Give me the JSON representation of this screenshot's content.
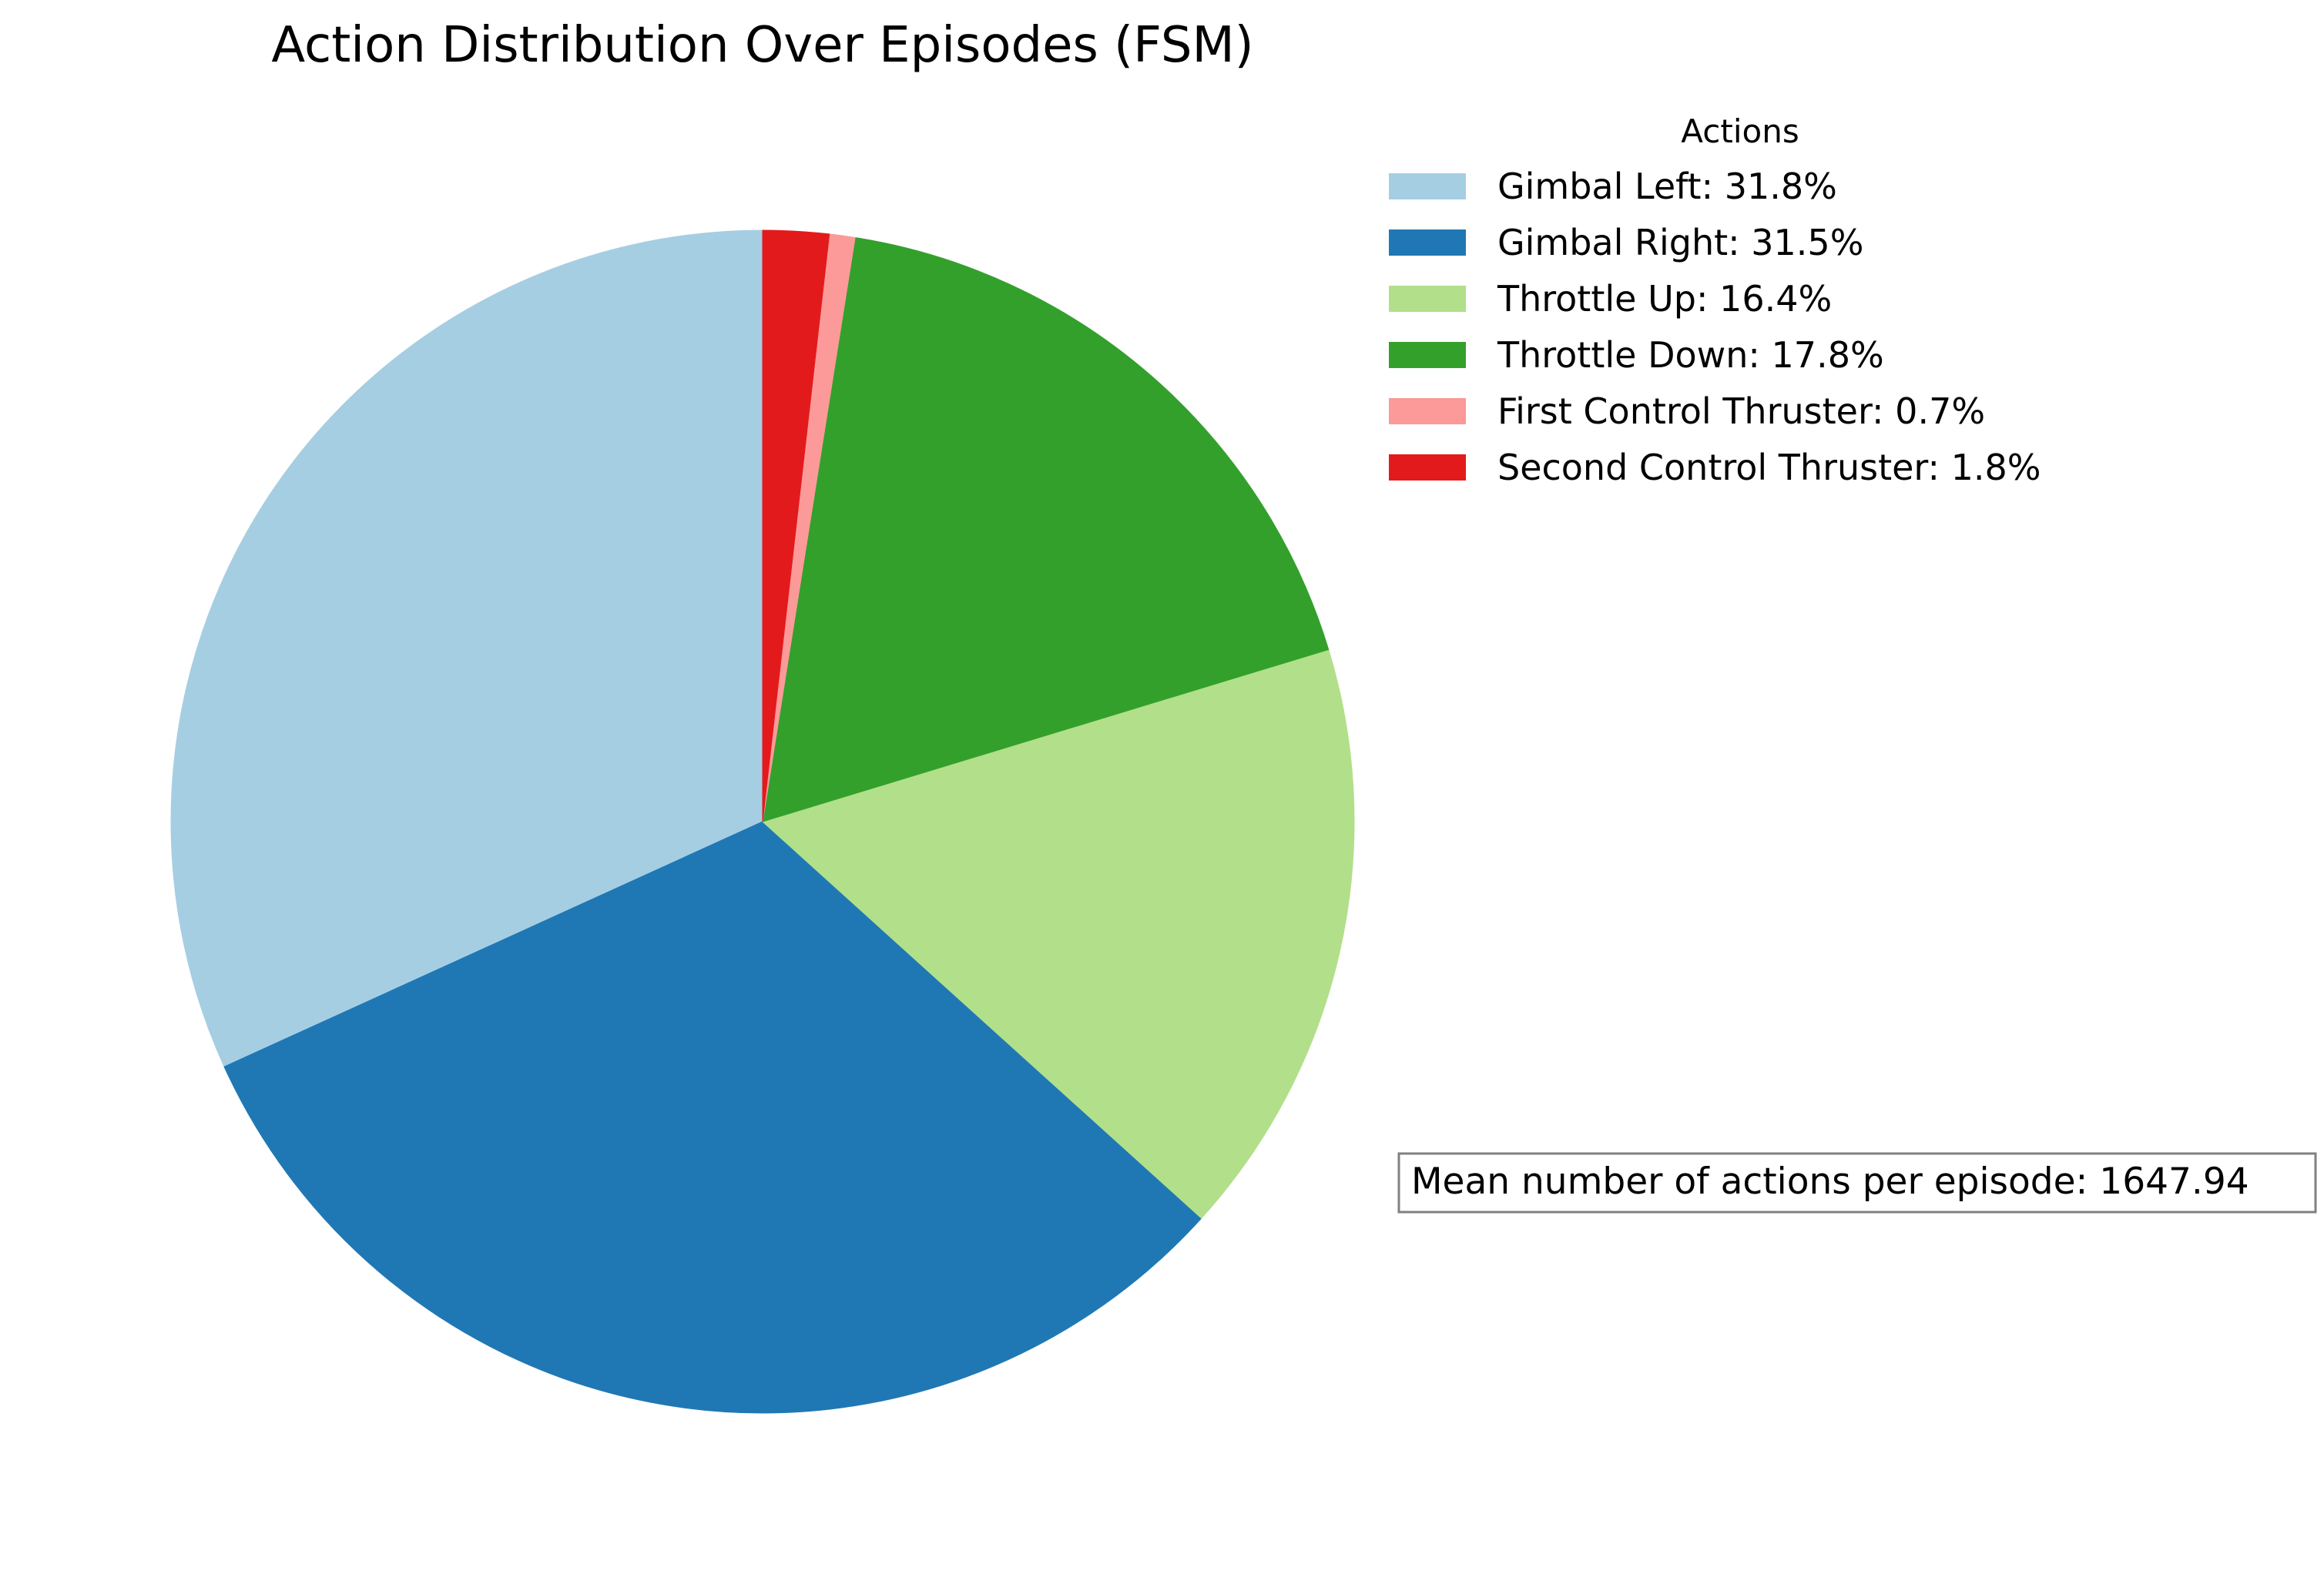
{
  "chart_data": {
    "type": "pie",
    "title": "Action Distribution Over Episodes (FSM)",
    "legend_title": "Actions",
    "legend_position": "top-right",
    "start_angle_deg": 90,
    "direction": "counterclockwise",
    "slices": [
      {
        "label": "Gimbal Left",
        "value": 31.8,
        "color": "#a6cee3",
        "legend_text": "Gimbal Left: 31.8%"
      },
      {
        "label": "Gimbal Right",
        "value": 31.5,
        "color": "#1f78b4",
        "legend_text": "Gimbal Right: 31.5%"
      },
      {
        "label": "Throttle Up",
        "value": 16.4,
        "color": "#b2df8a",
        "legend_text": "Throttle Up: 16.4%"
      },
      {
        "label": "Throttle Down",
        "value": 17.8,
        "color": "#33a02c",
        "legend_text": "Throttle Down: 17.8%"
      },
      {
        "label": "First Control Thruster",
        "value": 0.7,
        "color": "#fb9a99",
        "legend_text": "First Control Thruster: 0.7%"
      },
      {
        "label": "Second Control Thruster",
        "value": 1.8,
        "color": "#e31a1c",
        "legend_text": "Second Control Thruster: 1.8%"
      }
    ],
    "annotation": {
      "text": "Mean number of actions per episode: 1647.94",
      "label": "Mean number of actions per episode",
      "value": 1647.94
    }
  }
}
